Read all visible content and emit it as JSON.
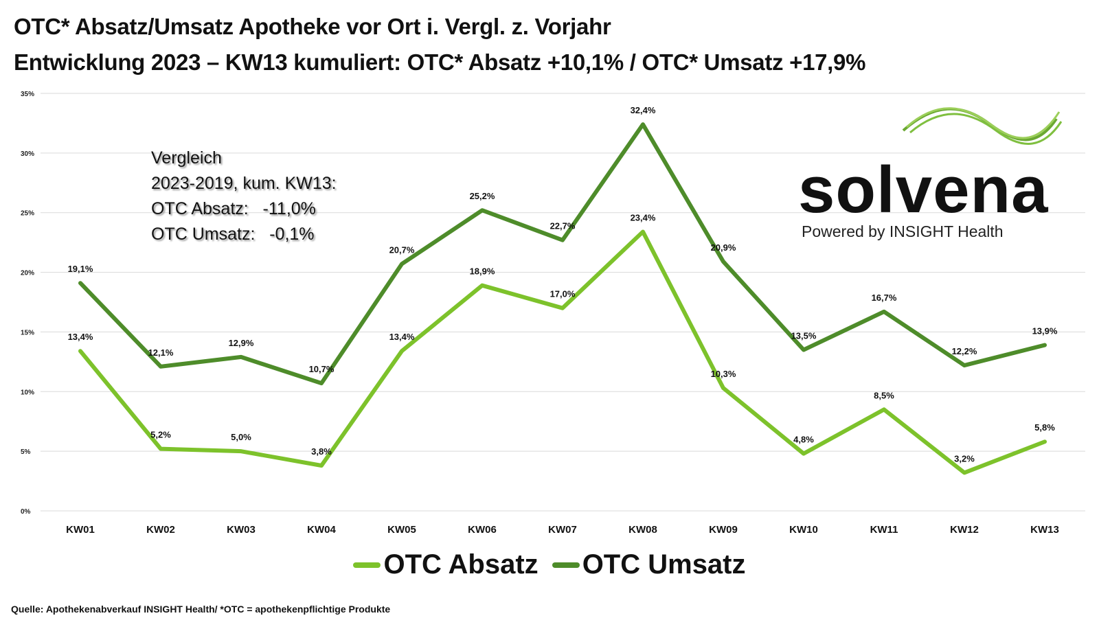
{
  "chart_data": {
    "type": "line",
    "title": "OTC* Absatz/Umsatz Apotheke vor Ort i. Vergl. z. Vorjahr",
    "subtitle": "Entwicklung 2023 – KW13 kumuliert: OTC* Absatz +10,1% / OTC* Umsatz +17,9%",
    "categories": [
      "KW01",
      "KW02",
      "KW03",
      "KW04",
      "KW05",
      "KW06",
      "KW07",
      "KW08",
      "KW09",
      "KW10",
      "KW11",
      "KW12",
      "KW13"
    ],
    "yticks": [
      "0%",
      "5%",
      "10%",
      "15%",
      "20%",
      "25%",
      "30%",
      "35%"
    ],
    "ylim": [
      0,
      35
    ],
    "grid": true,
    "legend_position": "bottom",
    "series": [
      {
        "name": "OTC Absatz",
        "color": "#7dc22b",
        "values": [
          13.4,
          5.2,
          5.0,
          3.8,
          13.4,
          18.9,
          17.0,
          23.4,
          10.3,
          4.8,
          8.5,
          3.2,
          5.8
        ],
        "labels": [
          "13,4%",
          "5,2%",
          "5,0%",
          "3,8%",
          "13,4%",
          "18,9%",
          "17,0%",
          "23,4%",
          "10,3%",
          "4,8%",
          "8,5%",
          "3,2%",
          "5,8%"
        ]
      },
      {
        "name": "OTC Umsatz",
        "color": "#4e8c2a",
        "values": [
          19.1,
          12.1,
          12.9,
          10.7,
          20.7,
          25.2,
          22.7,
          32.4,
          20.9,
          13.5,
          16.7,
          12.2,
          13.9
        ],
        "labels": [
          "19,1%",
          "12,1%",
          "12,9%",
          "10,7%",
          "20,7%",
          "25,2%",
          "22,7%",
          "32,4%",
          "20,9%",
          "13,5%",
          "16,7%",
          "12,2%",
          "13,9%"
        ]
      }
    ]
  },
  "annotation": {
    "lines": [
      "Vergleich",
      "2023-2019, kum. KW13:",
      "OTC Absatz:   -11,0%",
      "OTC Umsatz:   -0,1%"
    ]
  },
  "logo": {
    "name": "solvena",
    "tagline": "Powered by INSIGHT Health"
  },
  "source": "Quelle: Apothekenabverkauf INSIGHT Health/ *OTC = apothekenpflichtige Produkte"
}
